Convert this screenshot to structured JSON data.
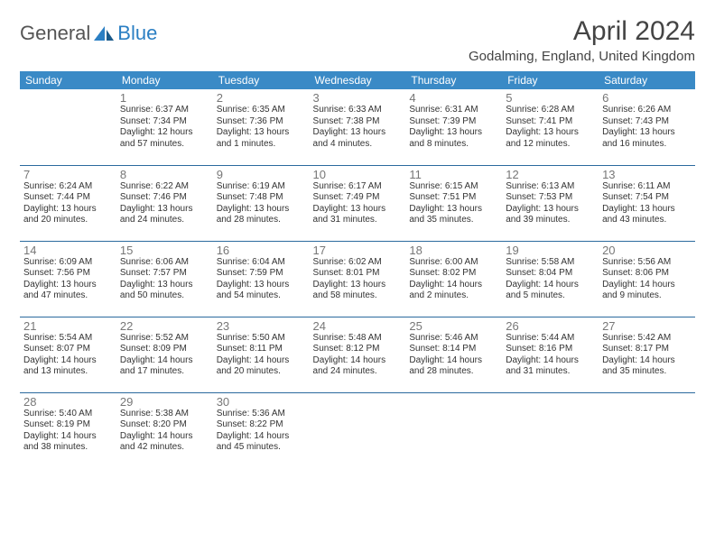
{
  "brand": {
    "part1": "General",
    "part2": "Blue"
  },
  "title": "April 2024",
  "location": "Godalming, England, United Kingdom",
  "colors": {
    "header_bg": "#3a8ac6",
    "header_text": "#ffffff",
    "border": "#2b6a9e",
    "daynum": "#777777",
    "body_text": "#333333",
    "brand_gray": "#555555",
    "brand_blue": "#2b7fc3"
  },
  "typography": {
    "title_fontsize": 30,
    "location_fontsize": 15,
    "header_fontsize": 12,
    "daynum_fontsize": 13,
    "body_fontsize": 10
  },
  "weekdays": [
    "Sunday",
    "Monday",
    "Tuesday",
    "Wednesday",
    "Thursday",
    "Friday",
    "Saturday"
  ],
  "weeks": [
    [
      null,
      {
        "n": "1",
        "sr": "Sunrise: 6:37 AM",
        "ss": "Sunset: 7:34 PM",
        "d1": "Daylight: 12 hours",
        "d2": "and 57 minutes."
      },
      {
        "n": "2",
        "sr": "Sunrise: 6:35 AM",
        "ss": "Sunset: 7:36 PM",
        "d1": "Daylight: 13 hours",
        "d2": "and 1 minutes."
      },
      {
        "n": "3",
        "sr": "Sunrise: 6:33 AM",
        "ss": "Sunset: 7:38 PM",
        "d1": "Daylight: 13 hours",
        "d2": "and 4 minutes."
      },
      {
        "n": "4",
        "sr": "Sunrise: 6:31 AM",
        "ss": "Sunset: 7:39 PM",
        "d1": "Daylight: 13 hours",
        "d2": "and 8 minutes."
      },
      {
        "n": "5",
        "sr": "Sunrise: 6:28 AM",
        "ss": "Sunset: 7:41 PM",
        "d1": "Daylight: 13 hours",
        "d2": "and 12 minutes."
      },
      {
        "n": "6",
        "sr": "Sunrise: 6:26 AM",
        "ss": "Sunset: 7:43 PM",
        "d1": "Daylight: 13 hours",
        "d2": "and 16 minutes."
      }
    ],
    [
      {
        "n": "7",
        "sr": "Sunrise: 6:24 AM",
        "ss": "Sunset: 7:44 PM",
        "d1": "Daylight: 13 hours",
        "d2": "and 20 minutes."
      },
      {
        "n": "8",
        "sr": "Sunrise: 6:22 AM",
        "ss": "Sunset: 7:46 PM",
        "d1": "Daylight: 13 hours",
        "d2": "and 24 minutes."
      },
      {
        "n": "9",
        "sr": "Sunrise: 6:19 AM",
        "ss": "Sunset: 7:48 PM",
        "d1": "Daylight: 13 hours",
        "d2": "and 28 minutes."
      },
      {
        "n": "10",
        "sr": "Sunrise: 6:17 AM",
        "ss": "Sunset: 7:49 PM",
        "d1": "Daylight: 13 hours",
        "d2": "and 31 minutes."
      },
      {
        "n": "11",
        "sr": "Sunrise: 6:15 AM",
        "ss": "Sunset: 7:51 PM",
        "d1": "Daylight: 13 hours",
        "d2": "and 35 minutes."
      },
      {
        "n": "12",
        "sr": "Sunrise: 6:13 AM",
        "ss": "Sunset: 7:53 PM",
        "d1": "Daylight: 13 hours",
        "d2": "and 39 minutes."
      },
      {
        "n": "13",
        "sr": "Sunrise: 6:11 AM",
        "ss": "Sunset: 7:54 PM",
        "d1": "Daylight: 13 hours",
        "d2": "and 43 minutes."
      }
    ],
    [
      {
        "n": "14",
        "sr": "Sunrise: 6:09 AM",
        "ss": "Sunset: 7:56 PM",
        "d1": "Daylight: 13 hours",
        "d2": "and 47 minutes."
      },
      {
        "n": "15",
        "sr": "Sunrise: 6:06 AM",
        "ss": "Sunset: 7:57 PM",
        "d1": "Daylight: 13 hours",
        "d2": "and 50 minutes."
      },
      {
        "n": "16",
        "sr": "Sunrise: 6:04 AM",
        "ss": "Sunset: 7:59 PM",
        "d1": "Daylight: 13 hours",
        "d2": "and 54 minutes."
      },
      {
        "n": "17",
        "sr": "Sunrise: 6:02 AM",
        "ss": "Sunset: 8:01 PM",
        "d1": "Daylight: 13 hours",
        "d2": "and 58 minutes."
      },
      {
        "n": "18",
        "sr": "Sunrise: 6:00 AM",
        "ss": "Sunset: 8:02 PM",
        "d1": "Daylight: 14 hours",
        "d2": "and 2 minutes."
      },
      {
        "n": "19",
        "sr": "Sunrise: 5:58 AM",
        "ss": "Sunset: 8:04 PM",
        "d1": "Daylight: 14 hours",
        "d2": "and 5 minutes."
      },
      {
        "n": "20",
        "sr": "Sunrise: 5:56 AM",
        "ss": "Sunset: 8:06 PM",
        "d1": "Daylight: 14 hours",
        "d2": "and 9 minutes."
      }
    ],
    [
      {
        "n": "21",
        "sr": "Sunrise: 5:54 AM",
        "ss": "Sunset: 8:07 PM",
        "d1": "Daylight: 14 hours",
        "d2": "and 13 minutes."
      },
      {
        "n": "22",
        "sr": "Sunrise: 5:52 AM",
        "ss": "Sunset: 8:09 PM",
        "d1": "Daylight: 14 hours",
        "d2": "and 17 minutes."
      },
      {
        "n": "23",
        "sr": "Sunrise: 5:50 AM",
        "ss": "Sunset: 8:11 PM",
        "d1": "Daylight: 14 hours",
        "d2": "and 20 minutes."
      },
      {
        "n": "24",
        "sr": "Sunrise: 5:48 AM",
        "ss": "Sunset: 8:12 PM",
        "d1": "Daylight: 14 hours",
        "d2": "and 24 minutes."
      },
      {
        "n": "25",
        "sr": "Sunrise: 5:46 AM",
        "ss": "Sunset: 8:14 PM",
        "d1": "Daylight: 14 hours",
        "d2": "and 28 minutes."
      },
      {
        "n": "26",
        "sr": "Sunrise: 5:44 AM",
        "ss": "Sunset: 8:16 PM",
        "d1": "Daylight: 14 hours",
        "d2": "and 31 minutes."
      },
      {
        "n": "27",
        "sr": "Sunrise: 5:42 AM",
        "ss": "Sunset: 8:17 PM",
        "d1": "Daylight: 14 hours",
        "d2": "and 35 minutes."
      }
    ],
    [
      {
        "n": "28",
        "sr": "Sunrise: 5:40 AM",
        "ss": "Sunset: 8:19 PM",
        "d1": "Daylight: 14 hours",
        "d2": "and 38 minutes."
      },
      {
        "n": "29",
        "sr": "Sunrise: 5:38 AM",
        "ss": "Sunset: 8:20 PM",
        "d1": "Daylight: 14 hours",
        "d2": "and 42 minutes."
      },
      {
        "n": "30",
        "sr": "Sunrise: 5:36 AM",
        "ss": "Sunset: 8:22 PM",
        "d1": "Daylight: 14 hours",
        "d2": "and 45 minutes."
      },
      null,
      null,
      null,
      null
    ]
  ]
}
